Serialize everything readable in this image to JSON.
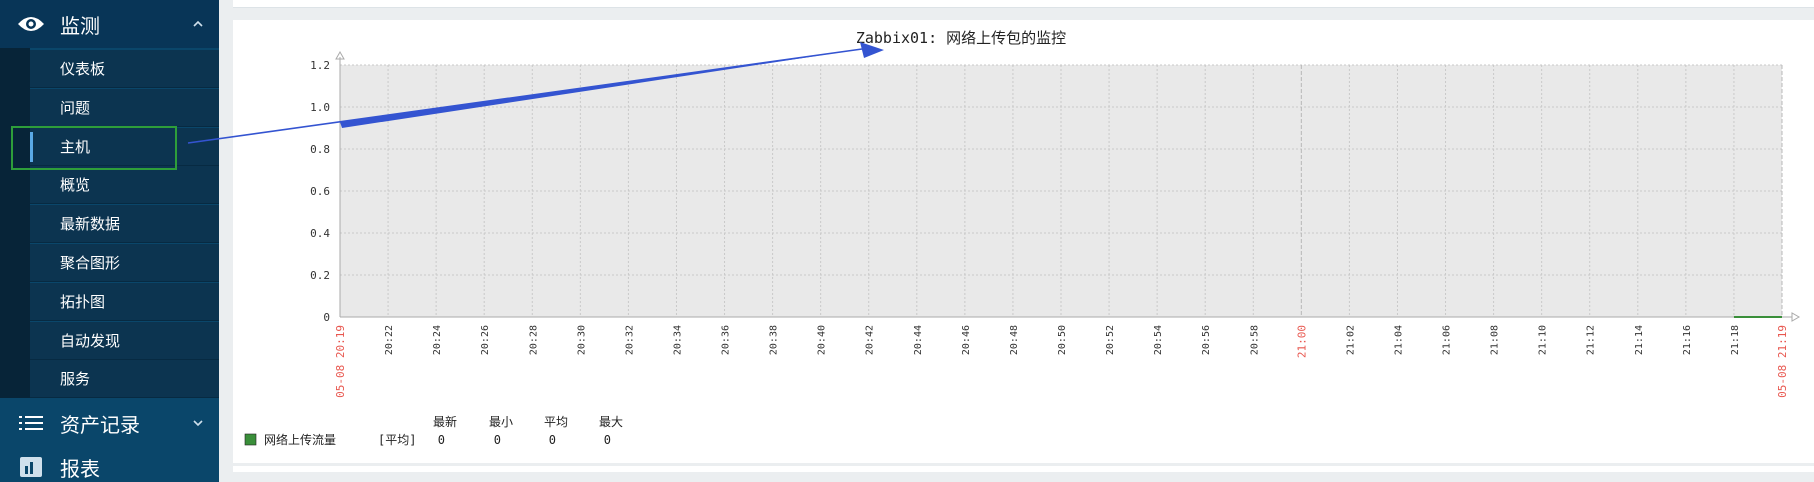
{
  "sidebar": {
    "monitor_label": "监测",
    "monitor_icon": "eye-icon",
    "items": [
      {
        "label": "仪表板",
        "active": false
      },
      {
        "label": "问题",
        "active": false
      },
      {
        "label": "主机",
        "active": true
      },
      {
        "label": "概览",
        "active": false
      },
      {
        "label": "最新数据",
        "active": false
      },
      {
        "label": "聚合图形",
        "active": false
      },
      {
        "label": "拓扑图",
        "active": false
      },
      {
        "label": "自动发现",
        "active": false
      },
      {
        "label": "服务",
        "active": false
      }
    ],
    "assets_label": "资产记录",
    "assets_icon": "list-icon",
    "reports_label": "报表",
    "reports_icon": "bar-chart-icon"
  },
  "colors": {
    "sidebar_bg": "#0a466a",
    "highlight_box": "#2e9e3a",
    "arrow": "#3454d1",
    "series": "#3a8f3a",
    "red_label": "#e8574f"
  },
  "chart_data": {
    "type": "line",
    "title": "Zabbix01: 网络上传包的监控",
    "y_ticks": [
      "0",
      "0.2",
      "0.4",
      "0.6",
      "0.8",
      "1.0",
      "1.2"
    ],
    "ylim": [
      0,
      1.2
    ],
    "x_ticks": [
      "05-08 20:19",
      "20:22",
      "20:24",
      "20:26",
      "20:28",
      "20:30",
      "20:32",
      "20:34",
      "20:36",
      "20:38",
      "20:40",
      "20:42",
      "20:44",
      "20:46",
      "20:48",
      "20:50",
      "20:52",
      "20:54",
      "20:56",
      "20:58",
      "21:00",
      "21:02",
      "21:04",
      "21:06",
      "21:08",
      "21:10",
      "21:12",
      "21:14",
      "21:16",
      "21:18",
      "05-08 21:19"
    ],
    "x_red_ticks": [
      "05-08 20:19",
      "21:00",
      "05-08 21:19"
    ],
    "grid": true,
    "series": [
      {
        "name": "网络上传流量",
        "x": [
          "21:18",
          "21:19"
        ],
        "values": [
          0,
          0
        ]
      }
    ],
    "legend": {
      "columns": [
        "最新",
        "最小",
        "平均",
        "最大"
      ],
      "rows": [
        {
          "name": "网络上传流量",
          "agg": "[平均]",
          "values": [
            "0",
            "0",
            "0",
            "0"
          ]
        }
      ]
    }
  }
}
